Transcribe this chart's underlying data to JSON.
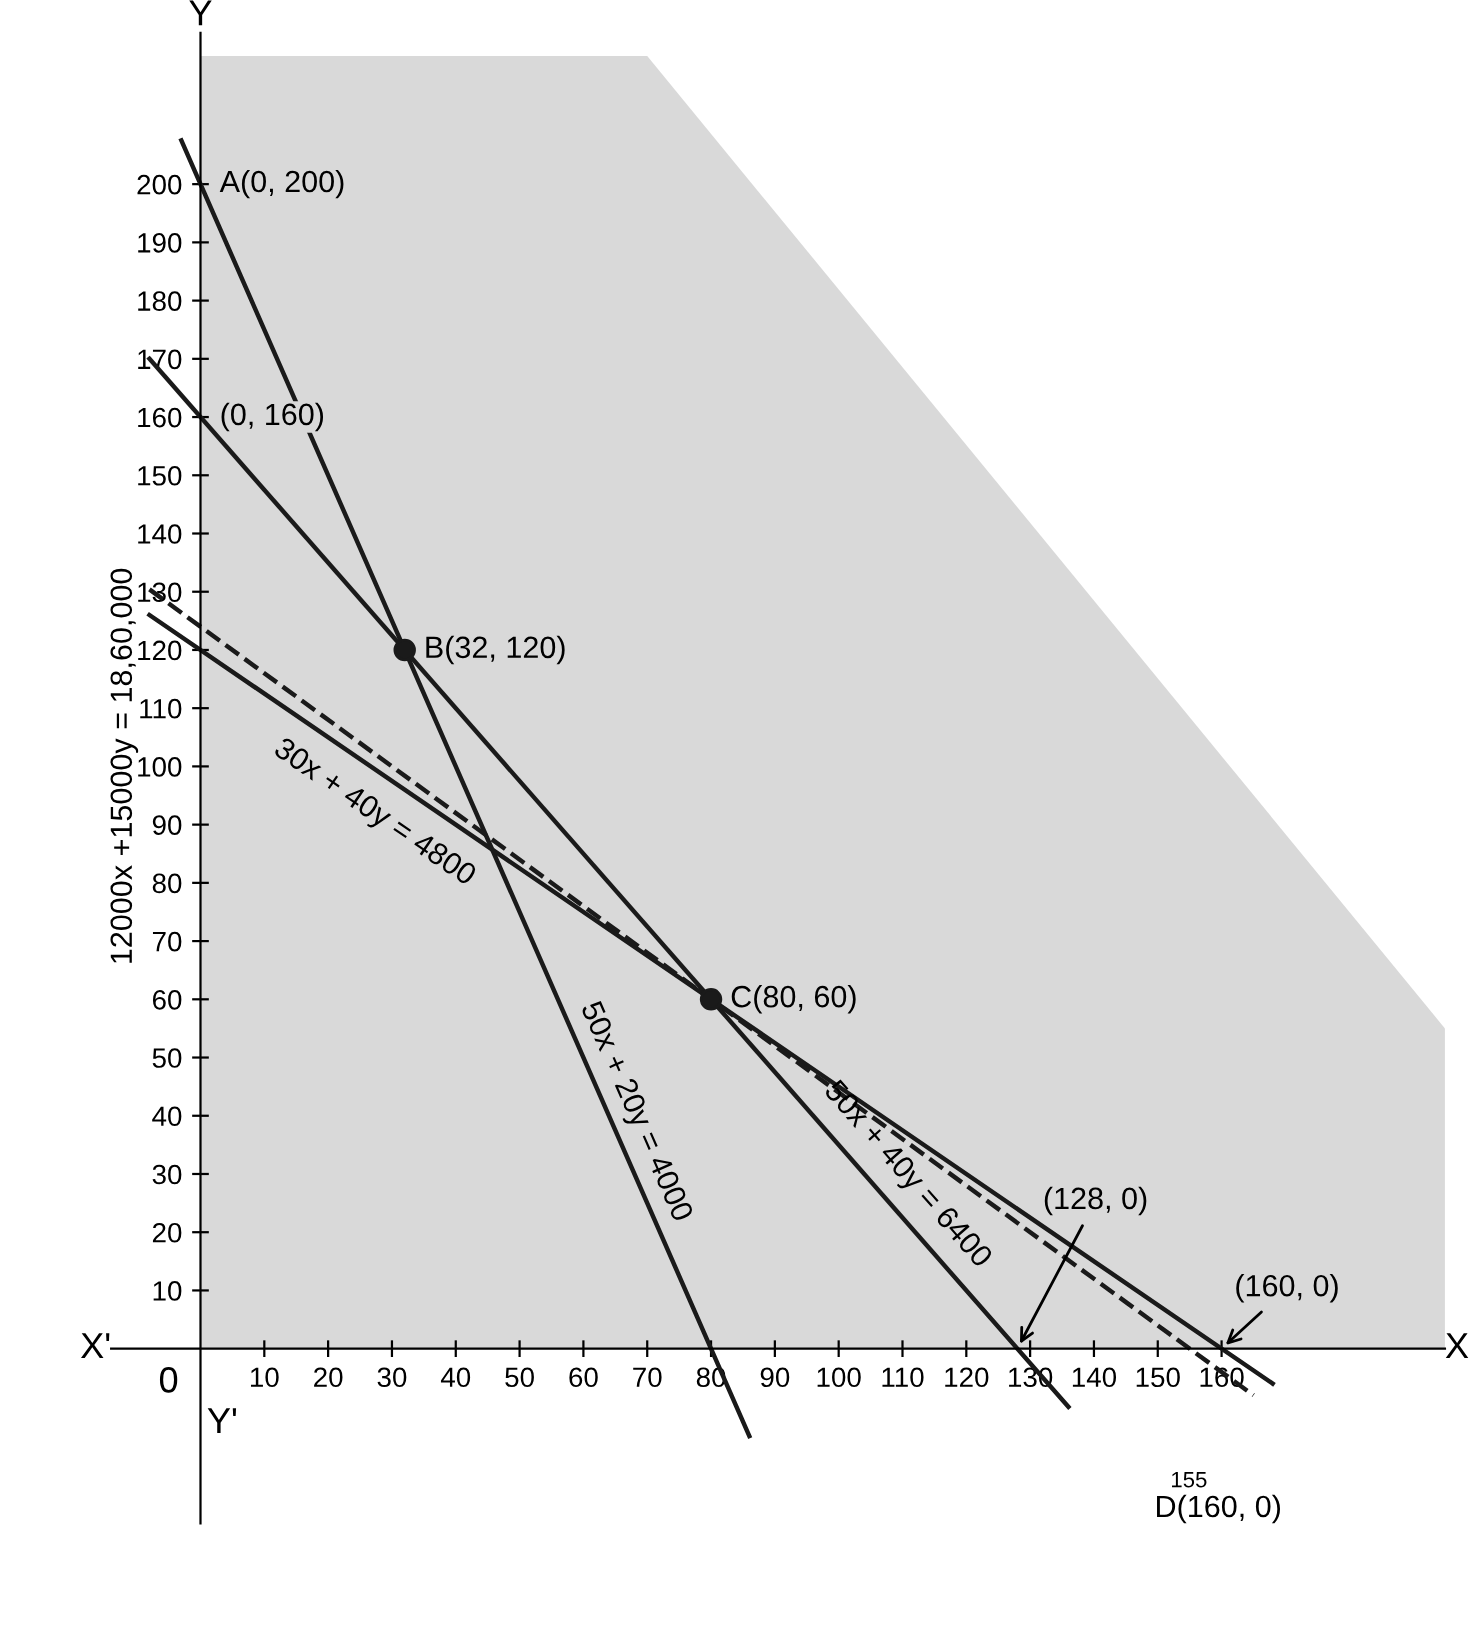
{
  "chart_data": {
    "type": "line",
    "xlim": [
      -14,
      195
    ],
    "ylim": [
      -30,
      226
    ],
    "xticks": [
      10,
      20,
      30,
      40,
      50,
      60,
      70,
      80,
      90,
      100,
      110,
      120,
      130,
      140,
      150,
      160
    ],
    "yticks": [
      10,
      20,
      30,
      40,
      50,
      60,
      70,
      80,
      90,
      100,
      110,
      120,
      130,
      140,
      150,
      160,
      170,
      180,
      190,
      200
    ],
    "grid": false,
    "legend": false,
    "marker": "none",
    "series": [
      {
        "color": "#1a1a1a",
        "x": [
          -3,
          86
        ],
        "values": [
          207.5,
          -15
        ],
        "line_style": "solid"
      },
      {
        "color": "#1a1a1a",
        "x": [
          -8,
          136
        ],
        "values": [
          170,
          -10
        ],
        "line_style": "solid"
      },
      {
        "color": "#1a1a1a",
        "x": [
          -8,
          168
        ],
        "values": [
          126,
          -6
        ],
        "line_style": "solid"
      },
      {
        "color": "#1a1a1a",
        "x": [
          -8,
          165
        ],
        "values": [
          130.4,
          -8
        ],
        "line_style": "dashed"
      },
      {
        "type": "area",
        "color": "#d9d9d9",
        "x": [
          0,
          70,
          195
        ],
        "values": [
          222,
          222,
          55
        ]
      },
      {
        "type": "scatter",
        "color": "#1a1a1a",
        "x": [
          32,
          80
        ],
        "values": [
          120,
          60
        ],
        "marker": "circle"
      }
    ],
    "annotations": [
      "50x + 20y = 4000",
      "50x + 40y = 6400",
      "30x + 40y = 4800",
      "12000x +15000y = 18,60,000",
      {
        "text": "A(0, 200)",
        "x": 0,
        "y": 200
      },
      {
        "text": "(0, 160)",
        "x": 0,
        "y": 160
      },
      {
        "text": "B(32, 120)",
        "x": 32,
        "y": 120
      },
      {
        "text": "C(80, 60)",
        "x": 80,
        "y": 60
      },
      {
        "text": "(128, 0)",
        "x": 128,
        "y": 0
      },
      {
        "text": "(160, 0)",
        "x": 160,
        "y": 0
      },
      "155",
      "D(160, 0)",
      "X",
      "X'",
      "Y",
      "Y'",
      "0"
    ]
  }
}
